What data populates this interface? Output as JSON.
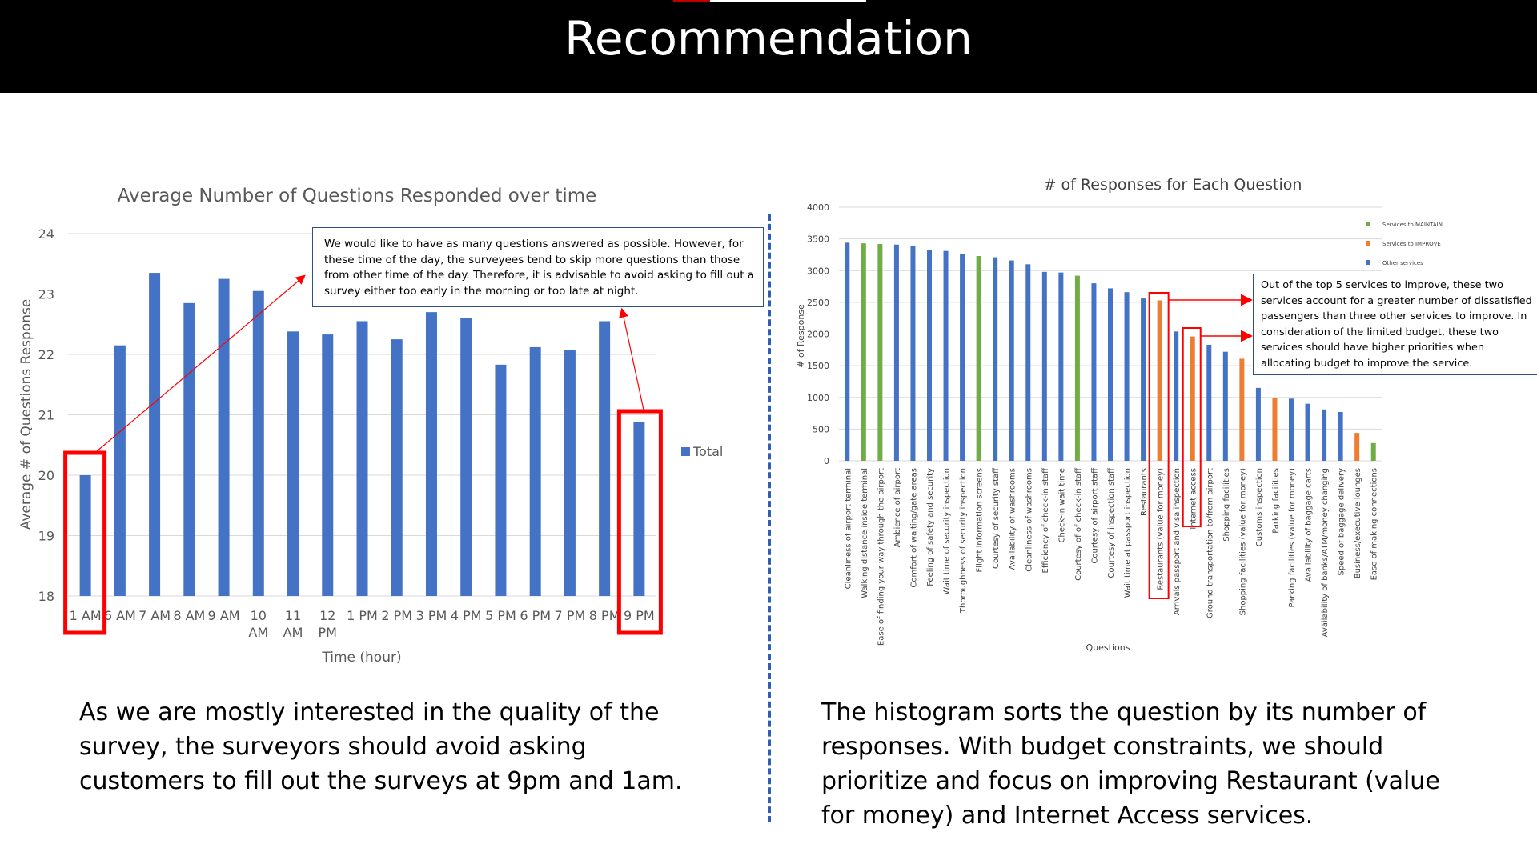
{
  "page": {
    "title": "Recommendation"
  },
  "chart_data": [
    {
      "type": "bar",
      "title": "Average Number of Questions Responded over time",
      "xlabel": "Time (hour)",
      "ylabel": "Average # of Questions Response",
      "ylim": [
        18,
        24
      ],
      "yticks": [
        18,
        19,
        20,
        21,
        22,
        23,
        24
      ],
      "grid": true,
      "legend_position": "right",
      "categories": [
        "1 AM",
        "6 AM",
        "7 AM",
        "8 AM",
        "9 AM",
        "10 AM",
        "11 AM",
        "12 PM",
        "1 PM",
        "2 PM",
        "3 PM",
        "4 PM",
        "5 PM",
        "6 PM",
        "7 PM",
        "8 PM",
        "9 PM"
      ],
      "series": [
        {
          "name": "Total",
          "color": "#4472C4",
          "values": [
            20.0,
            22.15,
            23.35,
            22.85,
            23.25,
            23.05,
            22.38,
            22.33,
            22.55,
            22.25,
            22.7,
            22.6,
            21.83,
            22.12,
            22.07,
            22.55,
            20.88
          ]
        }
      ],
      "highlighted": [
        "1 AM",
        "9 PM"
      ],
      "highlight_color": "#FF0000",
      "annotation": "We would like to have as many questions answered as possible. However, for these time of the day, the surveyees tend to skip more questions than those from other time of the day. Therefore, it is advisable to avoid asking to fill out a survey either too early in the morning or too late at night."
    },
    {
      "type": "bar",
      "title": "# of Responses for Each Question",
      "xlabel": "Questions",
      "ylabel": "# of Response",
      "ylim": [
        0,
        4000
      ],
      "yticks": [
        0,
        500,
        1000,
        1500,
        2000,
        2500,
        3000,
        3500,
        4000
      ],
      "grid": true,
      "legend_position": "top-right",
      "legend": [
        {
          "name": "Services to MAINTAIN",
          "color": "#70AD47"
        },
        {
          "name": "Services to IMPROVE",
          "color": "#ED7D31"
        },
        {
          "name": "Other services",
          "color": "#4472C4"
        }
      ],
      "categories": [
        "Cleanliness of airport terminal",
        "Walking distance inside terminal",
        "Ease of finding your way through the airport",
        "Ambience of airport",
        "Comfort of waiting/gate areas",
        "Feeling of safety and security",
        "Wait time of security inspection",
        "Thoroughness of security inspection",
        "Flight information screens",
        "Courtesy of security staff",
        "Availability of washrooms",
        "Cleanliness of washrooms",
        "Efficiency of check-in staff",
        "Check-in wait time",
        "Courtesy of of check-in staff",
        "Courtesy of airport staff",
        "Courtesy of inspection staff",
        "Wait time at passport inspection",
        "Restaurants",
        "Restaurants (value for money)",
        "Arrivals passport and visa inspection",
        "Internet access",
        "Ground transportation to/from airport",
        "Shopping facilities",
        "Shopping facilities (value for money)",
        "Customs inspection",
        "Parking facilities",
        "Parking facilities (value for money)",
        "Availability of baggage carts",
        "Availability of banks/ATM/money changing",
        "Speed of baggage delivery",
        "Business/executive lounges",
        "Ease of making connections"
      ],
      "values": [
        3440,
        3430,
        3420,
        3410,
        3390,
        3320,
        3310,
        3260,
        3230,
        3210,
        3160,
        3100,
        2980,
        2970,
        2920,
        2800,
        2720,
        2660,
        2560,
        2530,
        2040,
        1960,
        1830,
        1720,
        1610,
        1150,
        990,
        980,
        900,
        810,
        770,
        440,
        280
      ],
      "groups": [
        "other",
        "maintain",
        "maintain",
        "other",
        "other",
        "other",
        "other",
        "other",
        "maintain",
        "other",
        "other",
        "other",
        "other",
        "other",
        "maintain",
        "other",
        "other",
        "other",
        "other",
        "improve",
        "other",
        "improve",
        "other",
        "other",
        "improve",
        "other",
        "improve",
        "other",
        "other",
        "other",
        "other",
        "improve",
        "maintain"
      ],
      "highlighted": [
        "Restaurants (value for money)",
        "Internet access"
      ],
      "annotation": "Out of the top 5 services to improve, these two services account for a greater number of dissatisfied passengers than three other services to improve. In consideration of the limited budget, these two services should have higher priorities when allocating budget to improve the service."
    }
  ],
  "captions": {
    "left": "As we are mostly interested in the quality of the survey, the surveyors should avoid asking customers to fill out the surveys at 9pm and 1am.",
    "right": "The histogram sorts the question by its number of responses. With budget constraints, we should prioritize and focus on improving Restaurant (value for money) and Internet Access services."
  }
}
